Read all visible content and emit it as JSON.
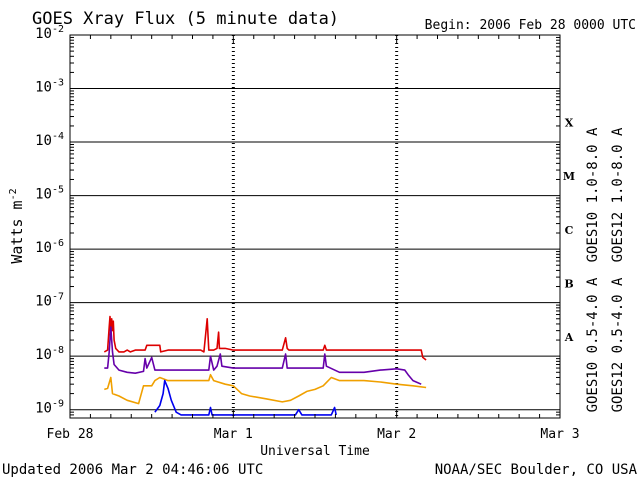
{
  "chart_data": {
    "type": "line",
    "title": "GOES Xray Flux (5 minute data)",
    "begin_label": "Begin:  2006 Feb 28 0000 UTC",
    "xlabel": "Universal Time",
    "ylabel_base": "Watts m",
    "ylabel_exp": "-2",
    "x_unit": "days since 2006 Feb 28 0000 UTC",
    "xlim": [
      0,
      3
    ],
    "xticks": [
      {
        "value": 0,
        "label": "Feb 28"
      },
      {
        "value": 1,
        "label": "Mar 1"
      },
      {
        "value": 2,
        "label": "Mar 2"
      },
      {
        "value": 3,
        "label": "Mar 3"
      }
    ],
    "yscale": "log",
    "ylim": [
      7e-10,
      0.01
    ],
    "yticks": [
      {
        "value": 0.01,
        "base": "10",
        "exp": "-2"
      },
      {
        "value": 0.001,
        "base": "10",
        "exp": "-3"
      },
      {
        "value": 0.0001,
        "base": "10",
        "exp": "-4"
      },
      {
        "value": 1e-05,
        "base": "10",
        "exp": "-5"
      },
      {
        "value": 1e-06,
        "base": "10",
        "exp": "-6"
      },
      {
        "value": 1e-07,
        "base": "10",
        "exp": "-7"
      },
      {
        "value": 1e-08,
        "base": "10",
        "exp": "-8"
      },
      {
        "value": 1e-09,
        "base": "10",
        "exp": "-9"
      }
    ],
    "flare_classes": [
      {
        "label": "X",
        "value": 0.00023
      },
      {
        "label": "M",
        "value": 2.3e-05
      },
      {
        "label": "C",
        "value": 2.3e-06
      },
      {
        "label": "B",
        "value": 2.3e-07
      },
      {
        "label": "A",
        "value": 2.3e-08
      }
    ],
    "grid": "horizontal lines at each decade; dashed vertical lines at day boundaries",
    "legend_placement": "right side, rotated",
    "series": [
      {
        "name": "GOES12 1.0-8.0 A",
        "color": "#dd0000",
        "points": [
          [
            0.21,
            1.2e-08
          ],
          [
            0.23,
            1.3e-08
          ],
          [
            0.24,
            3.5e-08
          ],
          [
            0.245,
            5.5e-08
          ],
          [
            0.25,
            2.5e-08
          ],
          [
            0.255,
            5e-08
          ],
          [
            0.26,
            3e-08
          ],
          [
            0.265,
            4.5e-08
          ],
          [
            0.27,
            2e-08
          ],
          [
            0.28,
            1.4e-08
          ],
          [
            0.3,
            1.2e-08
          ],
          [
            0.33,
            1.2e-08
          ],
          [
            0.35,
            1.3e-08
          ],
          [
            0.37,
            1.2e-08
          ],
          [
            0.4,
            1.3e-08
          ],
          [
            0.46,
            1.3e-08
          ],
          [
            0.47,
            1.6e-08
          ],
          [
            0.5,
            1.6e-08
          ],
          [
            0.55,
            1.6e-08
          ],
          [
            0.555,
            1.2e-08
          ],
          [
            0.6,
            1.3e-08
          ],
          [
            0.8,
            1.3e-08
          ],
          [
            0.82,
            1.2e-08
          ],
          [
            0.84,
            5e-08
          ],
          [
            0.845,
            2.5e-08
          ],
          [
            0.85,
            1.3e-08
          ],
          [
            0.88,
            1.3e-08
          ],
          [
            0.9,
            1.4e-08
          ],
          [
            0.91,
            2.8e-08
          ],
          [
            0.915,
            1.4e-08
          ],
          [
            0.95,
            1.4e-08
          ],
          [
            1.0,
            1.3e-08
          ],
          [
            1.3,
            1.3e-08
          ],
          [
            1.32,
            2.2e-08
          ],
          [
            1.33,
            1.4e-08
          ],
          [
            1.34,
            1.3e-08
          ],
          [
            1.55,
            1.3e-08
          ],
          [
            1.56,
            1.6e-08
          ],
          [
            1.57,
            1.3e-08
          ],
          [
            2.0,
            1.3e-08
          ],
          [
            2.15,
            1.3e-08
          ],
          [
            2.16,
            9.5e-09
          ],
          [
            2.18,
            8.5e-09
          ]
        ]
      },
      {
        "name": "GOES10 1.0-8.0 A",
        "color": "#6600aa",
        "points": [
          [
            0.21,
            6e-09
          ],
          [
            0.23,
            6e-09
          ],
          [
            0.24,
            1.2e-08
          ],
          [
            0.25,
            3.5e-08
          ],
          [
            0.26,
            1.2e-08
          ],
          [
            0.27,
            7e-09
          ],
          [
            0.3,
            5.5e-09
          ],
          [
            0.35,
            5e-09
          ],
          [
            0.4,
            4.8e-09
          ],
          [
            0.45,
            5.2e-09
          ],
          [
            0.46,
            9e-09
          ],
          [
            0.47,
            6e-09
          ],
          [
            0.5,
            9.5e-09
          ],
          [
            0.52,
            5.5e-09
          ],
          [
            0.55,
            5.5e-09
          ],
          [
            0.6,
            5.5e-09
          ],
          [
            0.75,
            5.5e-09
          ],
          [
            0.85,
            5.5e-09
          ],
          [
            0.86,
            1e-08
          ],
          [
            0.88,
            5.5e-09
          ],
          [
            0.9,
            6.5e-09
          ],
          [
            0.92,
            1.1e-08
          ],
          [
            0.93,
            6.5e-09
          ],
          [
            1.0,
            6e-09
          ],
          [
            1.2,
            6e-09
          ],
          [
            1.3,
            6e-09
          ],
          [
            1.32,
            1.1e-08
          ],
          [
            1.33,
            6e-09
          ],
          [
            1.55,
            6e-09
          ],
          [
            1.56,
            1.1e-08
          ],
          [
            1.57,
            6.5e-09
          ],
          [
            1.65,
            5e-09
          ],
          [
            1.8,
            5e-09
          ],
          [
            1.9,
            5.5e-09
          ],
          [
            2.0,
            5.8e-09
          ],
          [
            2.05,
            5.5e-09
          ],
          [
            2.07,
            4.5e-09
          ],
          [
            2.1,
            3.5e-09
          ],
          [
            2.15,
            3e-09
          ]
        ]
      },
      {
        "name": "GOES10 0.5-4.0 A",
        "color": "#f0a000",
        "points": [
          [
            0.21,
            2.4e-09
          ],
          [
            0.23,
            2.5e-09
          ],
          [
            0.25,
            4e-09
          ],
          [
            0.26,
            2e-09
          ],
          [
            0.3,
            1.8e-09
          ],
          [
            0.35,
            1.5e-09
          ],
          [
            0.42,
            1.3e-09
          ],
          [
            0.45,
            2.8e-09
          ],
          [
            0.5,
            2.8e-09
          ],
          [
            0.52,
            3.5e-09
          ],
          [
            0.55,
            4e-09
          ],
          [
            0.6,
            3.5e-09
          ],
          [
            0.7,
            3.5e-09
          ],
          [
            0.75,
            3.5e-09
          ],
          [
            0.85,
            3.5e-09
          ],
          [
            0.86,
            4.5e-09
          ],
          [
            0.88,
            3.5e-09
          ],
          [
            0.95,
            3e-09
          ],
          [
            1.0,
            2.8e-09
          ],
          [
            1.05,
            2e-09
          ],
          [
            1.1,
            1.8e-09
          ],
          [
            1.2,
            1.6e-09
          ],
          [
            1.3,
            1.4e-09
          ],
          [
            1.35,
            1.5e-09
          ],
          [
            1.4,
            1.8e-09
          ],
          [
            1.45,
            2.2e-09
          ],
          [
            1.5,
            2.4e-09
          ],
          [
            1.55,
            2.8e-09
          ],
          [
            1.6,
            4e-09
          ],
          [
            1.65,
            3.5e-09
          ],
          [
            1.7,
            3.5e-09
          ],
          [
            1.8,
            3.5e-09
          ],
          [
            1.9,
            3.3e-09
          ],
          [
            2.0,
            3e-09
          ],
          [
            2.1,
            2.8e-09
          ],
          [
            2.18,
            2.6e-09
          ]
        ]
      },
      {
        "name": "GOES12 0.5-4.0 A",
        "color": "#0000ee",
        "points": [
          [
            0.52,
            9e-10
          ],
          [
            0.55,
            1.2e-09
          ],
          [
            0.57,
            2e-09
          ],
          [
            0.58,
            3.5e-09
          ],
          [
            0.6,
            2.5e-09
          ],
          [
            0.62,
            1.5e-09
          ],
          [
            0.65,
            9e-10
          ],
          [
            0.68,
            8e-10
          ],
          [
            0.85,
            8e-10
          ],
          [
            0.86,
            1.1e-09
          ],
          [
            0.87,
            8e-10
          ],
          [
            1.38,
            8e-10
          ],
          [
            1.4,
            1e-09
          ],
          [
            1.42,
            8e-10
          ],
          [
            1.6,
            8e-10
          ],
          [
            1.62,
            1.1e-09
          ],
          [
            1.63,
            8e-10
          ]
        ]
      }
    ]
  },
  "footer": {
    "updated": "Updated 2006 Mar  2 04:46:06 UTC",
    "credit": "NOAA/SEC Boulder, CO USA"
  }
}
